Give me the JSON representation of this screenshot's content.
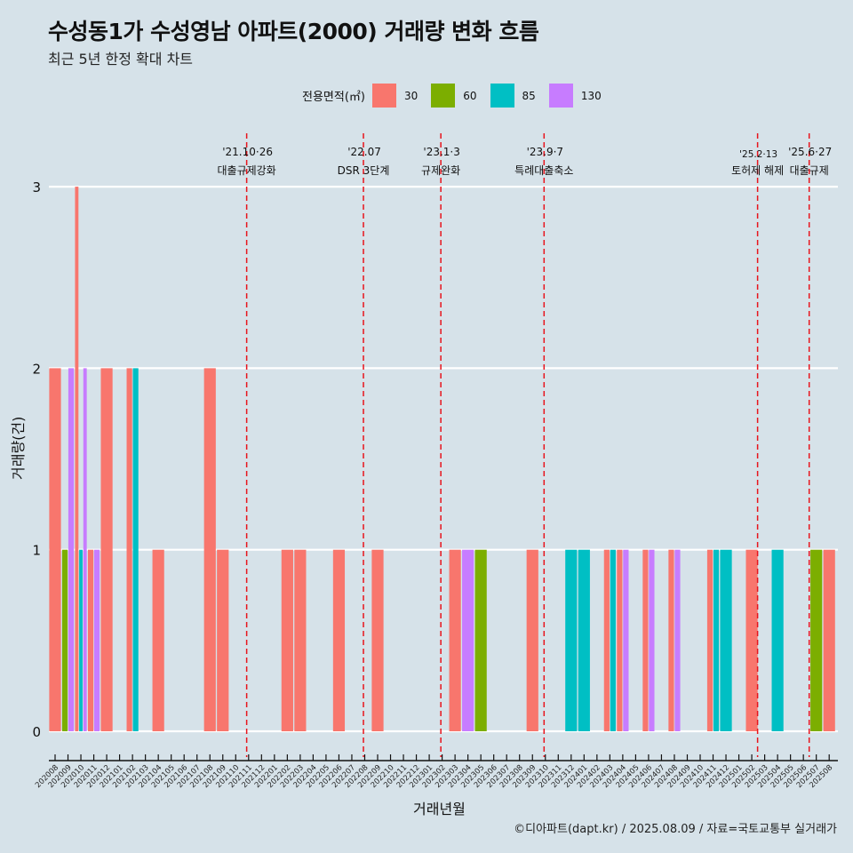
{
  "title": "수성동1가 수성영남 아파트(2000) 거래량 변화 흐름",
  "subtitle": "최근 5년 한정 확대 차트",
  "footer": "©디아파트(dapt.kr) / 2025.08.09 / 자료=국토교통부 실거래가",
  "legend": {
    "title": "전용면적(㎡)",
    "items": [
      {
        "label": "30",
        "color": "#f8766d"
      },
      {
        "label": "60",
        "color": "#7cae00"
      },
      {
        "label": "85",
        "color": "#00bfc4"
      },
      {
        "label": "130",
        "color": "#c77cff"
      }
    ]
  },
  "chart_data": {
    "type": "bar",
    "title": "수성동1가 수성영남 아파트(2000) 거래량 변화 흐름",
    "subtitle": "최근 5년 한정 확대 차트",
    "xlabel": "거래년월",
    "ylabel": "거래량(건)",
    "ylim": [
      0,
      3
    ],
    "yticks": [
      0,
      1,
      2,
      3
    ],
    "grid": "horizontal",
    "legend_position": "top",
    "bar_mode": "dodge",
    "categories": [
      "202008",
      "202009",
      "202010",
      "202011",
      "202012",
      "202101",
      "202102",
      "202103",
      "202104",
      "202105",
      "202106",
      "202107",
      "202108",
      "202109",
      "202110",
      "202111",
      "202112",
      "202201",
      "202202",
      "202203",
      "202204",
      "202205",
      "202206",
      "202207",
      "202208",
      "202209",
      "202210",
      "202211",
      "202212",
      "202301",
      "202302",
      "202303",
      "202304",
      "202305",
      "202306",
      "202307",
      "202308",
      "202309",
      "202310",
      "202311",
      "202312",
      "202401",
      "202402",
      "202403",
      "202404",
      "202405",
      "202406",
      "202407",
      "202408",
      "202409",
      "202410",
      "202411",
      "202412",
      "202501",
      "202502",
      "202503",
      "202504",
      "202505",
      "202506",
      "202507",
      "202508"
    ],
    "records": [
      {
        "month": "202008",
        "values": {
          "30": 2
        }
      },
      {
        "month": "202009",
        "values": {
          "60": 1,
          "130": 2
        }
      },
      {
        "month": "202010",
        "values": {
          "30": 3,
          "85": 1,
          "130": 2
        }
      },
      {
        "month": "202011",
        "values": {
          "30": 1,
          "130": 1
        }
      },
      {
        "month": "202012",
        "values": {
          "30": 2
        }
      },
      {
        "month": "202102",
        "values": {
          "30": 2,
          "85": 2
        }
      },
      {
        "month": "202104",
        "values": {
          "30": 1
        }
      },
      {
        "month": "202108",
        "values": {
          "30": 2
        }
      },
      {
        "month": "202109",
        "values": {
          "30": 1
        }
      },
      {
        "month": "202202",
        "values": {
          "30": 1
        }
      },
      {
        "month": "202203",
        "values": {
          "30": 1
        }
      },
      {
        "month": "202206",
        "values": {
          "30": 1
        }
      },
      {
        "month": "202209",
        "values": {
          "30": 1
        }
      },
      {
        "month": "202303",
        "values": {
          "30": 1
        }
      },
      {
        "month": "202304",
        "values": {
          "130": 1
        }
      },
      {
        "month": "202305",
        "values": {
          "60": 1
        }
      },
      {
        "month": "202309",
        "values": {
          "30": 1
        }
      },
      {
        "month": "202312",
        "values": {
          "85": 1
        }
      },
      {
        "month": "202401",
        "values": {
          "85": 1
        }
      },
      {
        "month": "202403",
        "values": {
          "30": 1,
          "85": 1
        }
      },
      {
        "month": "202404",
        "values": {
          "30": 1,
          "130": 1
        }
      },
      {
        "month": "202406",
        "values": {
          "30": 1,
          "130": 1
        }
      },
      {
        "month": "202408",
        "values": {
          "30": 1,
          "130": 1
        }
      },
      {
        "month": "202411",
        "values": {
          "30": 1,
          "85": 1
        }
      },
      {
        "month": "202412",
        "values": {
          "85": 1
        }
      },
      {
        "month": "202502",
        "values": {
          "30": 1
        }
      },
      {
        "month": "202504",
        "values": {
          "85": 1
        }
      },
      {
        "month": "202507",
        "values": {
          "60": 1
        }
      },
      {
        "month": "202508",
        "values": {
          "30": 1
        }
      }
    ],
    "annotations": [
      {
        "month_pos": 14.85,
        "date": "'21.10·26",
        "label": "대출규제강화"
      },
      {
        "month_pos": 23.9,
        "date": "'22.07",
        "label": "DSR 3단계"
      },
      {
        "month_pos": 29.9,
        "date": "'23.1·3",
        "label": "규제완화"
      },
      {
        "month_pos": 37.9,
        "date": "'23.9·7",
        "label": "특례대출축소"
      },
      {
        "month_pos": 54.45,
        "date": "'25.2·13",
        "label": "토허제 해제"
      },
      {
        "month_pos": 58.45,
        "date": "'25.6·27",
        "label": "대출규제"
      }
    ]
  }
}
